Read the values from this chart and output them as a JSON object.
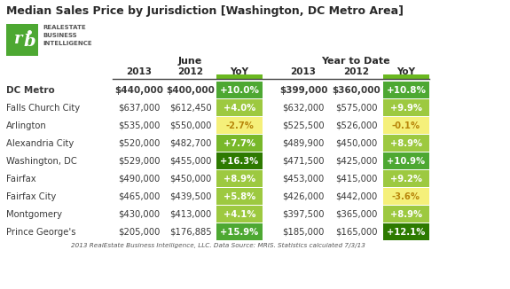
{
  "title": "Median Sales Price by Jurisdiction [Washington, DC Metro Area]",
  "footer": "2013 RealEstate Business Intelligence, LLC. Data Source: MRIS. Statistics calculated 7/3/13",
  "col_headers": [
    "2013",
    "2012",
    "YoY",
    "2013",
    "2012",
    "YoY"
  ],
  "rows": [
    {
      "label": "DC Metro",
      "bold": true,
      "values": [
        "$440,000",
        "$400,000",
        "+10.0%",
        "$399,000",
        "$360,000",
        "+10.8%"
      ],
      "yoy_june_color": "#4da832",
      "yoy_ytd_color": "#4da832",
      "yoy_june_text_color": "#ffffff",
      "yoy_ytd_text_color": "#ffffff"
    },
    {
      "label": "Falls Church City",
      "bold": false,
      "values": [
        "$637,000",
        "$612,450",
        "+4.0%",
        "$632,000",
        "$575,000",
        "+9.9%"
      ],
      "yoy_june_color": "#9dc940",
      "yoy_ytd_color": "#9dc940",
      "yoy_june_text_color": "#ffffff",
      "yoy_ytd_text_color": "#ffffff"
    },
    {
      "label": "Arlington",
      "bold": false,
      "values": [
        "$535,000",
        "$550,000",
        "-2.7%",
        "$525,500",
        "$526,000",
        "-0.1%"
      ],
      "yoy_june_color": "#f5f07a",
      "yoy_ytd_color": "#f5f07a",
      "yoy_june_text_color": "#b8860b",
      "yoy_ytd_text_color": "#b8860b"
    },
    {
      "label": "Alexandria City",
      "bold": false,
      "values": [
        "$520,000",
        "$482,700",
        "+7.7%",
        "$489,900",
        "$450,000",
        "+8.9%"
      ],
      "yoy_june_color": "#78b82a",
      "yoy_ytd_color": "#9dc940",
      "yoy_june_text_color": "#ffffff",
      "yoy_ytd_text_color": "#ffffff"
    },
    {
      "label": "Washington, DC",
      "bold": false,
      "values": [
        "$529,000",
        "$455,000",
        "+16.3%",
        "$471,500",
        "$425,000",
        "+10.9%"
      ],
      "yoy_june_color": "#2d7a00",
      "yoy_ytd_color": "#4da832",
      "yoy_june_text_color": "#ffffff",
      "yoy_ytd_text_color": "#ffffff"
    },
    {
      "label": "Fairfax",
      "bold": false,
      "values": [
        "$490,000",
        "$450,000",
        "+8.9%",
        "$453,000",
        "$415,000",
        "+9.2%"
      ],
      "yoy_june_color": "#9dc940",
      "yoy_ytd_color": "#9dc940",
      "yoy_june_text_color": "#ffffff",
      "yoy_ytd_text_color": "#ffffff"
    },
    {
      "label": "Fairfax City",
      "bold": false,
      "values": [
        "$465,000",
        "$439,500",
        "+5.8%",
        "$426,000",
        "$442,000",
        "-3.6%"
      ],
      "yoy_june_color": "#9dc940",
      "yoy_ytd_color": "#f5f07a",
      "yoy_june_text_color": "#ffffff",
      "yoy_ytd_text_color": "#b8860b"
    },
    {
      "label": "Montgomery",
      "bold": false,
      "values": [
        "$430,000",
        "$413,000",
        "+4.1%",
        "$397,500",
        "$365,000",
        "+8.9%"
      ],
      "yoy_june_color": "#9dc940",
      "yoy_ytd_color": "#9dc940",
      "yoy_june_text_color": "#ffffff",
      "yoy_ytd_text_color": "#ffffff"
    },
    {
      "label": "Prince George's",
      "bold": false,
      "values": [
        "$205,000",
        "$176,885",
        "+15.9%",
        "$185,000",
        "$165,000",
        "+12.1%"
      ],
      "yoy_june_color": "#4da832",
      "yoy_ytd_color": "#2d7a00",
      "yoy_june_text_color": "#ffffff",
      "yoy_ytd_text_color": "#ffffff"
    }
  ],
  "bg_color": "#ffffff",
  "cell_text_color": "#3a3a3a",
  "logo_green": "#4da832",
  "separator_color": "#444444",
  "col_header_color": "#2a2a2a",
  "group_header_color": "#2a2a2a",
  "yoy_header_color": "#6ab820",
  "footer_color": "#555555"
}
